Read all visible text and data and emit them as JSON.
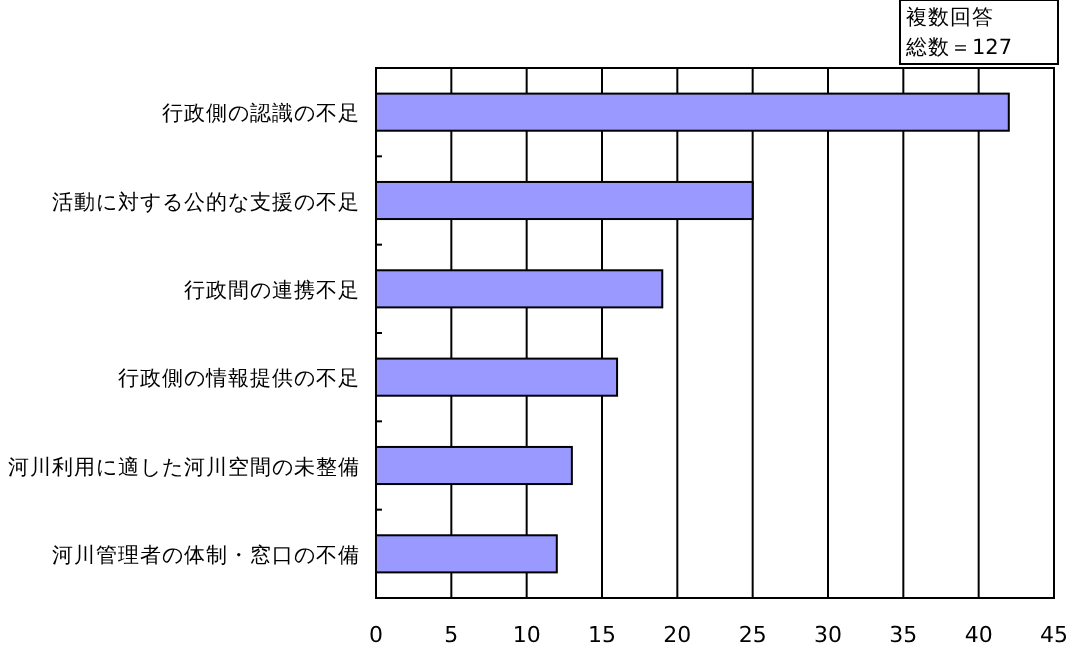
{
  "chart_data": {
    "type": "bar",
    "orientation": "horizontal",
    "categories": [
      "行政側の認識の不足",
      "活動に対する公的な支援の不足",
      "行政間の連携不足",
      "行政側の情報提供の不足",
      "河川利用に適した河川空間の未整備",
      "河川管理者の体制・窓口の不備"
    ],
    "values": [
      42,
      25,
      19,
      16,
      13,
      12
    ],
    "color": "#9999ff",
    "xlim": [
      0,
      45
    ],
    "xticks": [
      0,
      5,
      10,
      15,
      20,
      25,
      30,
      35,
      40,
      45
    ],
    "grid": "x",
    "annotations": [
      "複数回答",
      "総数＝127"
    ]
  }
}
